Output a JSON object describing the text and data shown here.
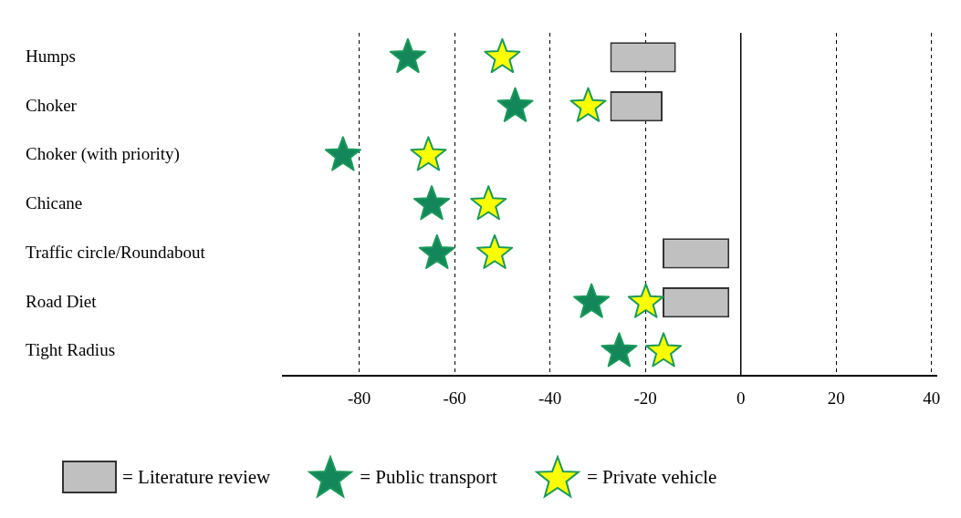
{
  "chart_data": {
    "type": "bar",
    "orientation": "horizontal",
    "categories": [
      "Humps",
      "Choker",
      "Choker (with priority)",
      "Chicane",
      "Traffic circle/Roundabout",
      "Road Diet",
      "Tight Radius"
    ],
    "xlim": [
      -96,
      41
    ],
    "xticks": [
      -80,
      -60,
      -40,
      -20,
      0,
      20,
      40
    ],
    "grid": "x",
    "line_style": "dashed",
    "marker": "star",
    "legend": "bottom",
    "ref_lines": [
      {
        "axis": "x",
        "value": 0,
        "color": "#000000",
        "line_style": "solid"
      }
    ],
    "series": [
      {
        "name": "= Literature review",
        "type": "bar",
        "color": "#c0c0c0",
        "base": [
          -27.4,
          -27.4,
          null,
          null,
          -16.4,
          -16.4,
          null
        ],
        "values": [
          13.8,
          11,
          null,
          null,
          14,
          14,
          null
        ]
      },
      {
        "name": "= Public transport",
        "type": "scatter",
        "color": "#13875a",
        "values": [
          -69.8,
          -47.3,
          -83.4,
          -64.8,
          -63.7,
          -31.3,
          -25.5
        ]
      },
      {
        "name": "= Private vehicle",
        "type": "scatter",
        "color": "#ffff00",
        "values": [
          -50,
          -32,
          -65.5,
          -52.9,
          -51.6,
          -19.9,
          -16.2
        ]
      }
    ]
  }
}
